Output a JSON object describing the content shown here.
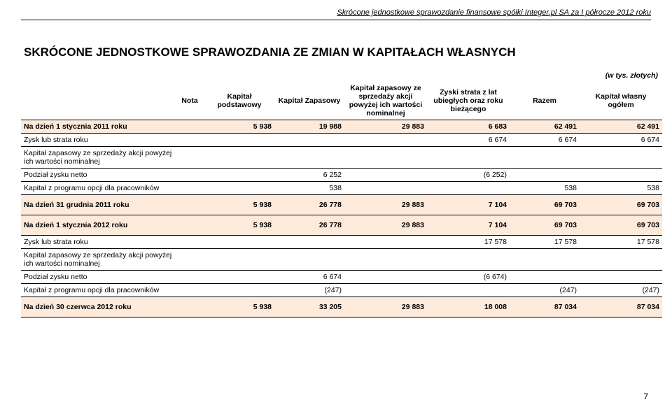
{
  "doc_header": "Skrócone jednostkowe sprawozdanie finansowe spółki Integer.pl SA za I półrocze 2012 roku",
  "title": "SKRÓCONE JEDNOSTKOWE SPRAWOZDANIA ZE ZMIAN W KAPITAŁACH WŁASNYCH",
  "unit_label": "(w tys. złotych)",
  "columns": {
    "nota": "Nota",
    "kap_podst": "Kapitał podstawowy",
    "kap_zap": "Kapitał Zapasowy",
    "kap_zap_sprz": "Kapitał zapasowy ze sprzedaży akcji powyżej ich wartości nominalnej",
    "zyski_strata": "Zyski strata z lat ubiegłych oraz roku bieżącego",
    "razem": "Razem",
    "kap_wlasny": "Kapitał własny ogółem"
  },
  "rows": [
    {
      "key": "r0",
      "label": "Na dzień 1 stycznia 2011 roku",
      "v": [
        "",
        "5 938",
        "19 988",
        "29 883",
        "6 683",
        "62 491",
        "62 491"
      ],
      "hl": true,
      "border": true,
      "border_top": true
    },
    {
      "key": "r1",
      "label": "Zysk lub strata roku",
      "v": [
        "",
        "",
        "",
        "",
        "6 674",
        "6 674",
        "6 674"
      ],
      "border": true
    },
    {
      "key": "r2",
      "label": "Kapitał zapasowy ze sprzedaży akcji powyżej ich wartości nominalnej",
      "v": [
        "",
        "",
        "",
        "",
        "",
        "",
        ""
      ],
      "border": true
    },
    {
      "key": "r3",
      "label": "Podział zysku netto",
      "v": [
        "",
        "",
        "6 252",
        "",
        "(6 252)",
        "",
        ""
      ],
      "border": true
    },
    {
      "key": "r4",
      "label": "Kapitał z programu opcji dla pracowników",
      "v": [
        "",
        "",
        "538",
        "",
        "",
        "538",
        "538"
      ],
      "border": true
    },
    {
      "key": "r5",
      "label": "Na dzień 31 grudnia 2011 roku",
      "v": [
        "",
        "5 938",
        "26 778",
        "29 883",
        "7 104",
        "69 703",
        "69 703"
      ],
      "hl": true,
      "border": true,
      "tall": true
    },
    {
      "key": "r6",
      "label": "Na dzień 1 stycznia 2012 roku",
      "v": [
        "",
        "5 938",
        "26 778",
        "29 883",
        "7 104",
        "69 703",
        "69 703"
      ],
      "hl": true,
      "border": true,
      "tall": true
    },
    {
      "key": "r7",
      "label": "Zysk lub strata roku",
      "v": [
        "",
        "",
        "",
        "",
        "17 578",
        "17 578",
        "17 578"
      ],
      "border": true
    },
    {
      "key": "r8",
      "label": "Kapitał zapasowy ze sprzedaży akcji powyżej ich wartości nominalnej",
      "v": [
        "",
        "",
        "",
        "",
        "",
        "",
        ""
      ],
      "border": true
    },
    {
      "key": "r9",
      "label": "Podział zysku netto",
      "v": [
        "",
        "",
        "6 674",
        "",
        "(6 674)",
        "",
        ""
      ],
      "border": true
    },
    {
      "key": "r10",
      "label": "Kapitał z programu opcji dla pracowników",
      "v": [
        "",
        "",
        "(247)",
        "",
        "",
        "(247)",
        "(247)"
      ],
      "border": true
    },
    {
      "key": "r11",
      "label": "Na dzień 30 czerwca 2012 roku",
      "v": [
        "",
        "5 938",
        "33 205",
        "29 883",
        "18 008",
        "87 034",
        "87 034"
      ],
      "hl": true,
      "border": true,
      "tall": true
    }
  ],
  "page_number": "7",
  "style": {
    "highlight_bg": "#fdeada",
    "border_color": "#000000",
    "font_body_pt": 10.5,
    "font_title_pt": 17,
    "font_header_pt": 11
  }
}
